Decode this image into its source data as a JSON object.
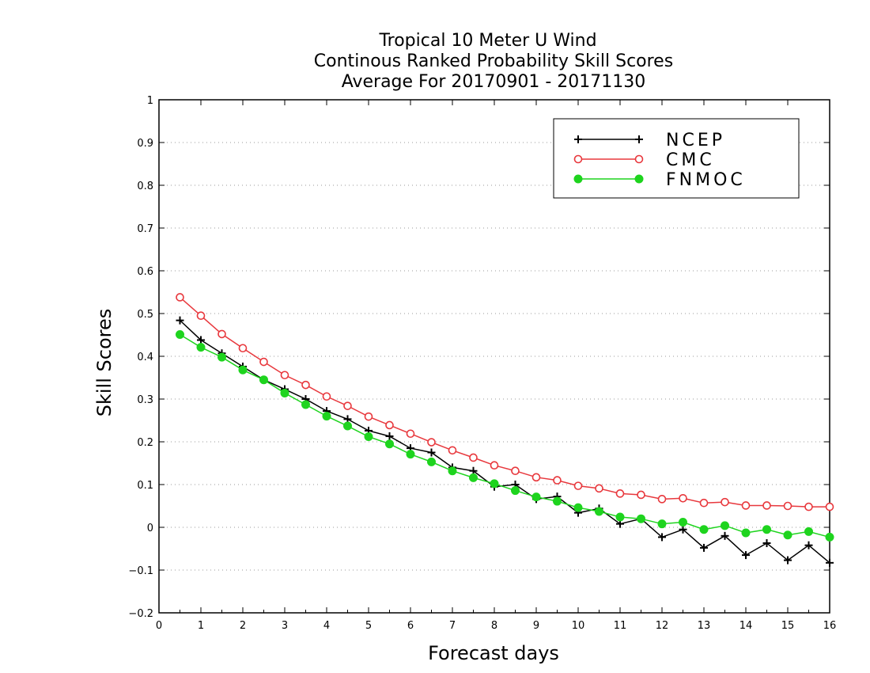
{
  "chart_data": {
    "type": "line",
    "title_lines": [
      "Tropical 10 Meter U Wind",
      "Continous Ranked Probability Skill Scores",
      "Average For 20170901 - 20171130"
    ],
    "xlabel": "Forecast days",
    "ylabel": "Skill Scores",
    "xlim": [
      0,
      16
    ],
    "ylim": [
      -0.2,
      1
    ],
    "x_ticks": [
      "0",
      "1",
      "2",
      "3",
      "4",
      "5",
      "6",
      "7",
      "8",
      "9",
      "10",
      "11",
      "12",
      "13",
      "14",
      "15",
      "16"
    ],
    "y_ticks": [
      "−0.2",
      "−0.1",
      "0",
      "0.1",
      "0.2",
      "0.3",
      "0.4",
      "0.5",
      "0.6",
      "0.7",
      "0.8",
      "0.9",
      "1"
    ],
    "grid": "horizontal dotted",
    "legend_position": "top-right",
    "x": [
      0.5,
      1,
      1.5,
      2,
      2.5,
      3,
      3.5,
      4,
      4.5,
      5,
      5.5,
      6,
      6.5,
      7,
      7.5,
      8,
      8.5,
      9,
      9.5,
      10,
      10.5,
      11,
      11.5,
      12,
      12.5,
      13,
      13.5,
      14,
      14.5,
      15,
      15.5,
      16
    ],
    "series": [
      {
        "name": "NCEP",
        "color": "#000000",
        "marker": "plus",
        "values": [
          0.484,
          0.438,
          0.407,
          0.376,
          0.345,
          0.323,
          0.3,
          0.272,
          0.253,
          0.226,
          0.213,
          0.185,
          0.175,
          0.14,
          0.132,
          0.095,
          0.1,
          0.066,
          0.072,
          0.034,
          0.044,
          0.008,
          0.02,
          -0.023,
          -0.005,
          -0.048,
          -0.02,
          -0.065,
          -0.037,
          -0.077,
          -0.042,
          -0.083
        ]
      },
      {
        "name": "CMC",
        "color": "#e8383d",
        "marker": "open-circle",
        "values": [
          0.538,
          0.495,
          0.452,
          0.419,
          0.387,
          0.356,
          0.333,
          0.306,
          0.284,
          0.259,
          0.239,
          0.219,
          0.199,
          0.18,
          0.163,
          0.145,
          0.132,
          0.117,
          0.11,
          0.097,
          0.091,
          0.079,
          0.076,
          0.066,
          0.068,
          0.057,
          0.059,
          0.051,
          0.051,
          0.05,
          0.048,
          0.048
        ]
      },
      {
        "name": "FNMOC",
        "color": "#1ed41e",
        "marker": "filled-circle",
        "values": [
          0.451,
          0.421,
          0.398,
          0.368,
          0.345,
          0.314,
          0.287,
          0.26,
          0.237,
          0.212,
          0.195,
          0.171,
          0.153,
          0.132,
          0.116,
          0.102,
          0.086,
          0.071,
          0.061,
          0.046,
          0.037,
          0.024,
          0.02,
          0.008,
          0.012,
          -0.005,
          0.004,
          -0.013,
          -0.005,
          -0.018,
          -0.01,
          -0.023
        ]
      }
    ]
  }
}
